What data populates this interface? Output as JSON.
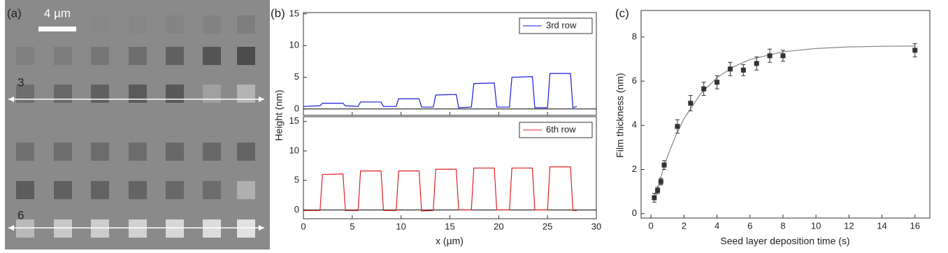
{
  "image": {
    "label": "(a)",
    "scale_bar": "4 µm",
    "row_labels": [
      "3",
      "6"
    ]
  },
  "chart_data": [
    {
      "type": "line",
      "label": "(b)",
      "ylabel": "Height (nm)",
      "xtick_labels": false,
      "zero_line": true,
      "legend": "upper right",
      "xlim": [
        0,
        30
      ],
      "xticks": [
        0,
        5,
        10,
        15,
        20,
        25,
        30
      ],
      "ylim": [
        -1,
        15.2
      ],
      "yticks": [
        0,
        5,
        10,
        15
      ],
      "x": [
        0,
        1.7,
        1.95,
        4.05,
        4.3,
        5.6,
        5.85,
        7.95,
        8.2,
        9.5,
        9.75,
        11.85,
        12.1,
        13.3,
        13.55,
        15.65,
        15.9,
        17.2,
        17.45,
        19.55,
        19.8,
        21.1,
        21.35,
        23.45,
        23.7,
        25.0,
        25.25,
        27.35,
        27.6,
        28
      ],
      "series": [
        {
          "name": "3rd row",
          "color": "#1a1adc",
          "values": [
            0.4,
            0.5,
            0.9,
            0.9,
            0.5,
            0.4,
            1.1,
            1.1,
            0.4,
            0.4,
            1.6,
            1.6,
            0.3,
            0.3,
            2.2,
            2.3,
            0.2,
            0.3,
            4.0,
            4.1,
            0.3,
            0.3,
            5.0,
            5.1,
            0.2,
            0.2,
            5.6,
            5.6,
            0.2,
            0.4
          ]
        }
      ]
    },
    {
      "type": "line",
      "xlabel": "x (µm)",
      "zero_line": true,
      "legend": "upper right",
      "xlim": [
        0,
        30
      ],
      "xticks": [
        0,
        5,
        10,
        15,
        20,
        25,
        30
      ],
      "ylim": [
        -1.5,
        15.8
      ],
      "yticks": [
        0,
        5,
        10,
        15
      ],
      "x": [
        0,
        1.7,
        1.95,
        4.05,
        4.3,
        5.6,
        5.85,
        7.95,
        8.2,
        9.5,
        9.75,
        11.85,
        12.1,
        13.3,
        13.55,
        15.65,
        15.9,
        17.2,
        17.45,
        19.55,
        19.8,
        21.1,
        21.35,
        23.45,
        23.7,
        25.0,
        25.25,
        27.35,
        27.6,
        28
      ],
      "series": [
        {
          "name": "6th row",
          "color": "#e02020",
          "values": [
            -0.1,
            -0.1,
            6.0,
            6.1,
            -0.1,
            -0.1,
            6.6,
            6.6,
            -0.1,
            -0.1,
            6.6,
            6.6,
            -0.2,
            -0.1,
            6.9,
            6.9,
            0,
            0,
            7.1,
            7.1,
            0,
            0,
            7.1,
            7.1,
            0,
            0,
            7.3,
            7.3,
            -0.1,
            -0.1
          ]
        }
      ]
    },
    {
      "type": "scatter",
      "label": "(c)",
      "xlabel": "Seed layer deposition time (s)",
      "ylabel": "Film thickness (nm)",
      "xlim": [
        -0.6,
        16.9
      ],
      "xticks": [
        0,
        2,
        4,
        6,
        8,
        10,
        12,
        14,
        16
      ],
      "ylim": [
        -0.2,
        9.2
      ],
      "yticks": [
        0,
        2,
        4,
        6,
        8
      ],
      "x": [
        0.2,
        0.4,
        0.6,
        0.8,
        1.6,
        2.4,
        3.2,
        4,
        4.8,
        5.6,
        6.4,
        7.2,
        8,
        16
      ],
      "series": [
        {
          "color": "#333333",
          "values": [
            0.72,
            1.05,
            1.45,
            2.2,
            3.95,
            5.0,
            5.65,
            5.95,
            6.55,
            6.5,
            6.8,
            7.15,
            7.15,
            7.4
          ],
          "errors": [
            0.2,
            0.15,
            0.15,
            0.2,
            0.3,
            0.35,
            0.3,
            0.3,
            0.3,
            0.25,
            0.3,
            0.3,
            0.25,
            0.3
          ]
        }
      ],
      "fit": {
        "color": "#888888",
        "x": [
          0.2,
          0.5,
          1,
          1.5,
          2,
          3,
          4,
          5,
          6,
          8,
          10,
          12,
          14,
          16
        ],
        "values": [
          0.61,
          1.43,
          2.59,
          3.53,
          4.3,
          5.42,
          6.16,
          6.65,
          6.98,
          7.33,
          7.48,
          7.55,
          7.58,
          7.59
        ]
      }
    }
  ]
}
